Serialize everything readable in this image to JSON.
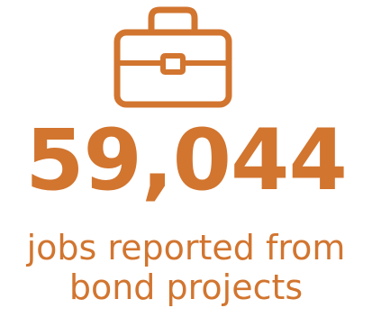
{
  "colors": {
    "accent": "#d2752f",
    "background": "#ffffff"
  },
  "icon": {
    "name": "briefcase-icon"
  },
  "stat": {
    "value": "59,044",
    "caption_line1": "jobs reported from",
    "caption_line2": "bond projects"
  }
}
